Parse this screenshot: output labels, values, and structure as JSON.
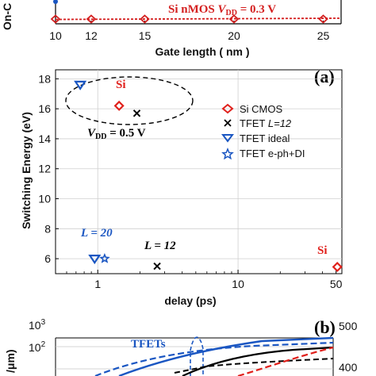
{
  "panel_a": {
    "tag": "(a)",
    "ylabel_fragment": "On-C",
    "xlabel": "Gate length ( nm )",
    "annotation_prefix": "Si nMOS ",
    "annotation_vdd": "V",
    "annotation_vdd_sub": "DD",
    "annotation_suffix": " = 0.3 V",
    "series_color": "#d41f1f",
    "chart_data": {
      "type": "line",
      "x": [
        10,
        12,
        15,
        20,
        25
      ],
      "xticks": [
        "10",
        "12",
        "15",
        "20",
        "25"
      ],
      "xlim": [
        10,
        26
      ]
    }
  },
  "panel_b": {
    "tag": "(b)",
    "xlabel": "delay (ps)",
    "ylabel": "Switching Energy (eV)",
    "vdd_label_v": "V",
    "vdd_label_sub": "DD",
    "vdd_label_rest": " = 0.5 V",
    "l20_label": "L = 20",
    "l12_label": "L = 12",
    "si_label_top": "Si",
    "si_label_right": "Si",
    "legend": [
      {
        "label": "Si CMOS",
        "marker": "diamond-red"
      },
      {
        "label_prefix": "TFET ",
        "label_italic": "L=12",
        "marker": "x-black"
      },
      {
        "label": "TFET ideal",
        "marker": "triangle-blue"
      },
      {
        "label": "TFET e-ph+DI",
        "marker": "star-blue"
      }
    ],
    "colors": {
      "si": "#e0201b",
      "tfet_blue": "#1a56c2",
      "black": "#000000"
    },
    "chart_data": {
      "type": "scatter",
      "x_scale": "log",
      "xlim": [
        0.5,
        55
      ],
      "ylim": [
        5,
        18.6
      ],
      "xticks": [
        1,
        10,
        50
      ],
      "xtick_labels": [
        "1",
        "10",
        "50"
      ],
      "yticks": [
        6,
        8,
        10,
        12,
        14,
        16,
        18
      ],
      "ytick_labels": [
        "6",
        "8",
        "10",
        "12",
        "14",
        "16",
        "18"
      ],
      "series": [
        {
          "name": "Si CMOS",
          "points": [
            [
              1.42,
              16.2
            ],
            [
              51,
              5.45
            ]
          ]
        },
        {
          "name": "TFET L=12",
          "points": [
            [
              1.9,
              15.7
            ],
            [
              2.65,
              5.5
            ]
          ]
        },
        {
          "name": "TFET ideal",
          "points": [
            [
              0.75,
              17.6
            ],
            [
              0.95,
              6.0
            ]
          ]
        },
        {
          "name": "TFET e-ph+DI",
          "points": [
            [
              1.12,
              6.0
            ]
          ]
        }
      ]
    }
  },
  "panel_c": {
    "ylabel_fragment": "/μm)",
    "left_ticks": [
      "10",
      "10"
    ],
    "left_exps": [
      "3",
      "2"
    ],
    "right_ticks": [
      "500",
      "400"
    ],
    "tfets_label": "TFETs",
    "colors": {
      "blue": "#1a56c2",
      "black": "#000000",
      "red": "#e0201b"
    }
  }
}
